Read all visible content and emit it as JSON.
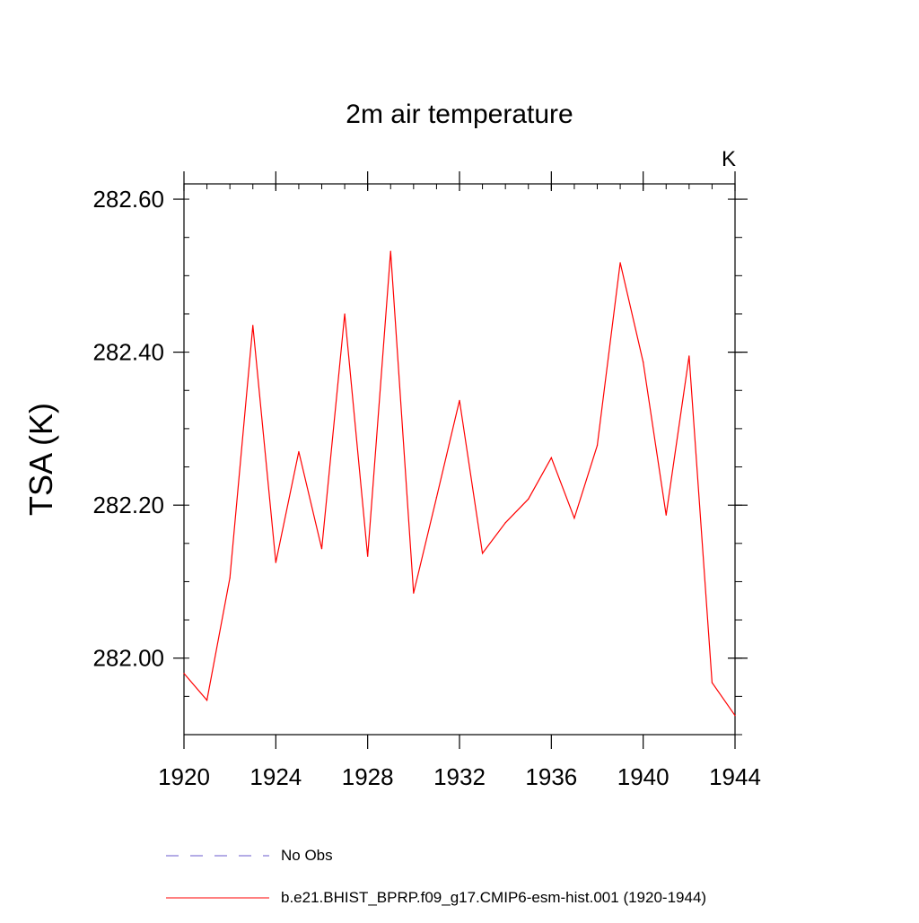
{
  "chart_data": {
    "type": "line",
    "title": "2m air temperature",
    "units_label": "K",
    "xlabel": "",
    "ylabel": "TSA  (K)",
    "xlim": [
      1920,
      1944
    ],
    "ylim": [
      281.9,
      282.62
    ],
    "x_ticks": [
      1920,
      1924,
      1928,
      1932,
      1936,
      1940,
      1944
    ],
    "x_tick_labels": [
      "1920",
      "1924",
      "1928",
      "1932",
      "1936",
      "1940",
      "1944"
    ],
    "y_ticks": [
      282.0,
      282.2,
      282.4,
      282.6
    ],
    "y_tick_labels": [
      "282.00",
      "282.20",
      "282.40",
      "282.60"
    ],
    "y_minor_step": 0.05,
    "x_minor_step": 1,
    "grid": false,
    "legend_position": "bottom",
    "series": [
      {
        "name": "b.e21.BHIST_BPRP.f09_g17.CMIP6-esm-hist.001 (1920-1944)",
        "color": "#ff0000",
        "dash": "solid",
        "x": [
          1920,
          1921,
          1922,
          1923,
          1924,
          1925,
          1926,
          1927,
          1928,
          1929,
          1930,
          1931,
          1932,
          1933,
          1934,
          1935,
          1936,
          1937,
          1938,
          1939,
          1940,
          1941,
          1942,
          1943,
          1944
        ],
        "values": [
          281.98,
          281.945,
          282.105,
          282.435,
          282.125,
          282.27,
          282.143,
          282.45,
          282.133,
          282.532,
          282.085,
          282.21,
          282.337,
          282.137,
          282.177,
          282.208,
          282.262,
          282.183,
          282.278,
          282.517,
          282.387,
          282.187,
          282.395,
          281.968,
          281.925
        ]
      }
    ],
    "legend": [
      {
        "label": "No Obs",
        "color": "#6a5acd",
        "dash": "dashed"
      },
      {
        "label": "b.e21.BHIST_BPRP.f09_g17.CMIP6-esm-hist.001 (1920-1944)",
        "color": "#ff0000",
        "dash": "solid"
      }
    ]
  }
}
